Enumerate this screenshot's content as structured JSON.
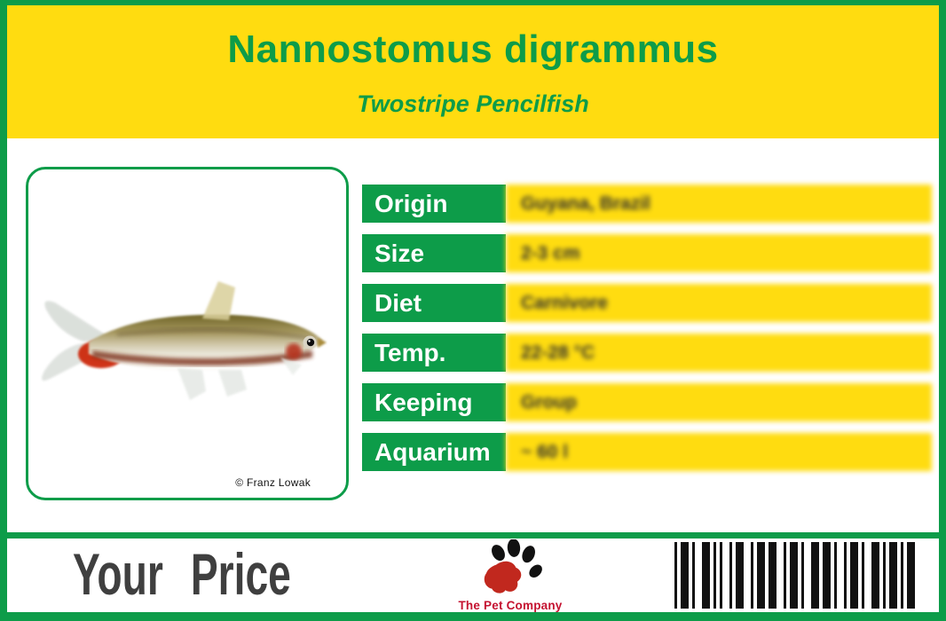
{
  "label": {
    "scientific_name": "Nannostomus digrammus",
    "common_name": "Twostripe Pencilfish"
  },
  "photo": {
    "credit": "© Franz Lowak",
    "subject": "twostripe-pencilfish-side-view"
  },
  "specs": {
    "rows": [
      {
        "label": "Origin",
        "value": "Guyana, Brazil"
      },
      {
        "label": "Size",
        "value": "2-3 cm"
      },
      {
        "label": "Diet",
        "value": "Carnivore"
      },
      {
        "label": "Temp.",
        "value": "22-28 °C"
      },
      {
        "label": "Keeping",
        "value": "Group"
      },
      {
        "label": "Aquarium",
        "value": "~ 60 l"
      }
    ]
  },
  "footer": {
    "price_label": "Your Price",
    "brand_name": "The Pet Company"
  },
  "colors": {
    "green": "#0D9C49",
    "yellow": "#FFDC10",
    "price_text": "#3F3F3F",
    "brand_red": "#C41230",
    "barcode_black": "#111111"
  },
  "barcode": {
    "pattern": [
      3,
      4,
      9,
      4,
      3,
      8,
      9,
      4,
      3,
      4,
      3,
      8,
      3,
      4,
      9,
      8,
      3,
      4,
      9,
      4,
      9,
      8,
      3,
      4,
      9,
      4,
      3,
      8,
      9,
      4,
      9,
      4,
      3,
      8,
      3,
      4,
      9,
      4,
      3,
      8,
      9,
      4,
      3,
      4,
      9,
      4,
      3,
      4,
      9
    ]
  }
}
